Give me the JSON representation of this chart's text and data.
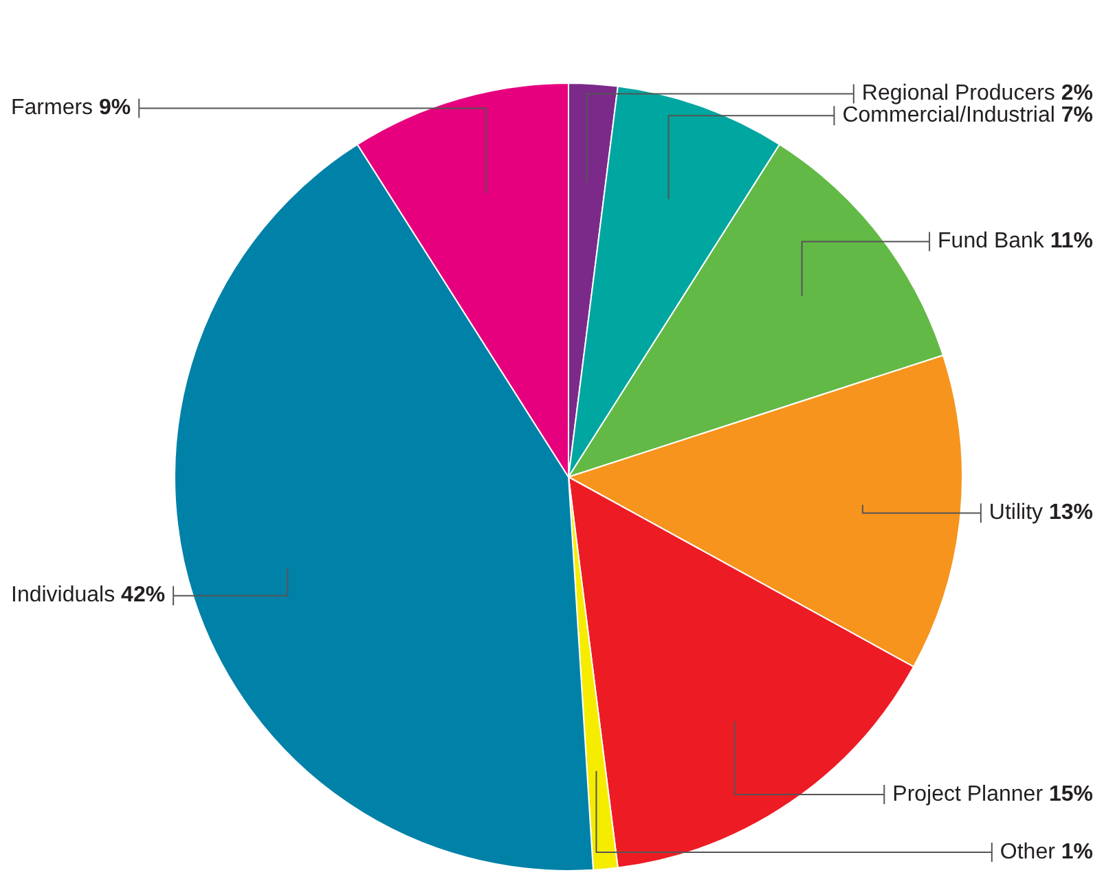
{
  "chart_data": {
    "type": "pie",
    "categories": [
      "Regional Producers",
      "Commercial/Industrial",
      "Fund Bank",
      "Utility",
      "Project Planner",
      "Other",
      "Individuals",
      "Farmers"
    ],
    "values": [
      2,
      7,
      11,
      13,
      15,
      1,
      42,
      9
    ],
    "value_labels": [
      "2%",
      "7%",
      "11%",
      "13%",
      "15%",
      "1%",
      "42%",
      "9%"
    ],
    "colors": [
      "#7b2a8a",
      "#00a6a0",
      "#62b946",
      "#f7941d",
      "#ed1c24",
      "#f5ec00",
      "#0081a8",
      "#e6007e"
    ],
    "legend": false
  }
}
